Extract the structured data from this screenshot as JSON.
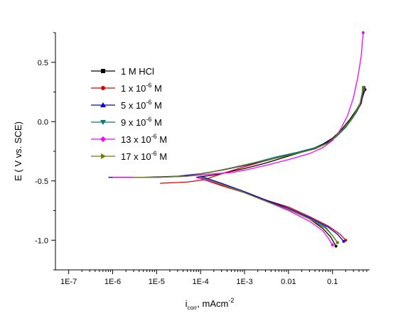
{
  "chart_data": {
    "type": "line",
    "xlabel_main": "i",
    "xlabel_sub": "corr",
    "xlabel_rest": ", mAcm",
    "xlabel_sup": "-2",
    "ylabel": "E ( V vs. SCE)",
    "xscale": "log",
    "xlim": [
      5e-08,
      0.7
    ],
    "ylim": [
      -1.25,
      0.75
    ],
    "xticks": [
      {
        "label": "1E-7",
        "value": 1e-07
      },
      {
        "label": "1E-6",
        "value": 1e-06
      },
      {
        "label": "1E-5",
        "value": 1e-05
      },
      {
        "label": "1E-4",
        "value": 0.0001
      },
      {
        "label": "1E-3",
        "value": 0.001
      },
      {
        "label": "0.01",
        "value": 0.01
      },
      {
        "label": "0.1",
        "value": 0.1
      }
    ],
    "yticks": [
      {
        "label": "-1.0",
        "value": -1.0
      },
      {
        "label": "-0.5",
        "value": -0.5
      },
      {
        "label": "0.0",
        "value": 0.0
      },
      {
        "label": "0.5",
        "value": 0.5
      }
    ],
    "grid": false,
    "legend_position": "upper-left",
    "series": [
      {
        "name": "1 M HCl",
        "label_main": "1 M HCl",
        "label_sup": "",
        "label_tail": "",
        "color": "#000000",
        "marker": "square",
        "ecorr": -0.47,
        "icorr": 8e-05,
        "anodic": [
          [
            8e-05,
            -0.47
          ],
          [
            0.0002,
            -0.45
          ],
          [
            0.0005,
            -0.42
          ],
          [
            0.001,
            -0.395
          ],
          [
            0.003,
            -0.35
          ],
          [
            0.01,
            -0.29
          ],
          [
            0.03,
            -0.24
          ],
          [
            0.06,
            -0.19
          ],
          [
            0.1,
            -0.14
          ],
          [
            0.15,
            -0.08
          ],
          [
            0.25,
            0.02
          ],
          [
            0.35,
            0.1
          ],
          [
            0.45,
            0.17
          ],
          [
            0.55,
            0.27
          ]
        ],
        "cathodic": [
          [
            8e-05,
            -0.47
          ],
          [
            0.0002,
            -0.51
          ],
          [
            0.0005,
            -0.56
          ],
          [
            0.001,
            -0.6
          ],
          [
            0.003,
            -0.66
          ],
          [
            0.01,
            -0.74
          ],
          [
            0.03,
            -0.82
          ],
          [
            0.06,
            -0.9
          ],
          [
            0.09,
            -0.97
          ],
          [
            0.12,
            -1.05
          ]
        ]
      },
      {
        "name": "1 x 10-6 M",
        "label_main": "1 x 10",
        "label_sup": "-6",
        "label_tail": " M",
        "color": "#e00000",
        "marker": "circle",
        "ecorr": -0.52,
        "icorr": 0.00012,
        "anodic": [
          [
            1.2e-05,
            -0.52
          ],
          [
            5e-05,
            -0.51
          ],
          [
            0.00012,
            -0.49
          ],
          [
            0.0003,
            -0.44
          ],
          [
            0.001,
            -0.38
          ],
          [
            0.003,
            -0.33
          ],
          [
            0.01,
            -0.28
          ],
          [
            0.03,
            -0.24
          ],
          [
            0.06,
            -0.2
          ],
          [
            0.1,
            -0.15
          ],
          [
            0.15,
            -0.09
          ],
          [
            0.25,
            0.0
          ],
          [
            0.35,
            0.08
          ],
          [
            0.45,
            0.15
          ],
          [
            0.52,
            0.27
          ]
        ],
        "cathodic": [
          [
            0.00012,
            -0.49
          ],
          [
            0.0003,
            -0.54
          ],
          [
            0.001,
            -0.6
          ],
          [
            0.003,
            -0.66
          ],
          [
            0.01,
            -0.72
          ],
          [
            0.03,
            -0.8
          ],
          [
            0.08,
            -0.88
          ],
          [
            0.15,
            -0.95
          ],
          [
            0.2,
            -1.0
          ]
        ]
      },
      {
        "name": "5 x 10-6 M",
        "label_main": "5 x 10",
        "label_sup": "-6",
        "label_tail": " M",
        "color": "#0000e0",
        "marker": "triangle-up",
        "ecorr": -0.47,
        "icorr": 0.0001,
        "anodic": [
          [
            8e-07,
            -0.47
          ],
          [
            5e-06,
            -0.47
          ],
          [
            3e-05,
            -0.46
          ],
          [
            0.0001,
            -0.44
          ],
          [
            0.0003,
            -0.41
          ],
          [
            0.001,
            -0.37
          ],
          [
            0.003,
            -0.33
          ],
          [
            0.01,
            -0.28
          ],
          [
            0.03,
            -0.24
          ],
          [
            0.06,
            -0.2
          ],
          [
            0.1,
            -0.15
          ],
          [
            0.15,
            -0.09
          ],
          [
            0.25,
            0.0
          ],
          [
            0.35,
            0.08
          ],
          [
            0.45,
            0.16
          ],
          [
            0.52,
            0.29
          ]
        ],
        "cathodic": [
          [
            0.0001,
            -0.46
          ],
          [
            0.0003,
            -0.52
          ],
          [
            0.001,
            -0.59
          ],
          [
            0.003,
            -0.66
          ],
          [
            0.01,
            -0.73
          ],
          [
            0.03,
            -0.81
          ],
          [
            0.08,
            -0.89
          ],
          [
            0.13,
            -0.95
          ],
          [
            0.18,
            -1.01
          ]
        ]
      },
      {
        "name": "9 x 10-6 M",
        "label_main": "9 x 10",
        "label_sup": "-6",
        "label_tail": " M",
        "color": "#007a7a",
        "marker": "triangle-down",
        "ecorr": -0.47,
        "icorr": 0.0001,
        "anodic": [
          [
            2e-06,
            -0.47
          ],
          [
            1e-05,
            -0.47
          ],
          [
            5e-05,
            -0.46
          ],
          [
            0.00015,
            -0.43
          ],
          [
            0.0005,
            -0.39
          ],
          [
            0.0015,
            -0.35
          ],
          [
            0.005,
            -0.3
          ],
          [
            0.015,
            -0.26
          ],
          [
            0.04,
            -0.22
          ],
          [
            0.08,
            -0.18
          ],
          [
            0.12,
            -0.13
          ],
          [
            0.2,
            -0.05
          ],
          [
            0.3,
            0.04
          ],
          [
            0.42,
            0.14
          ],
          [
            0.5,
            0.27
          ]
        ],
        "cathodic": [
          [
            0.0001,
            -0.47
          ],
          [
            0.0003,
            -0.53
          ],
          [
            0.001,
            -0.6
          ],
          [
            0.003,
            -0.67
          ],
          [
            0.01,
            -0.74
          ],
          [
            0.03,
            -0.82
          ],
          [
            0.07,
            -0.89
          ],
          [
            0.1,
            -0.96
          ],
          [
            0.13,
            -1.02
          ]
        ]
      },
      {
        "name": "13 x 10-6 M",
        "label_main": "13 x 10",
        "label_sup": "-6",
        "label_tail": " M",
        "color": "#ff00ff",
        "marker": "diamond",
        "ecorr": -0.47,
        "icorr": 8e-05,
        "anodic": [
          [
            1e-06,
            -0.47
          ],
          [
            1e-05,
            -0.47
          ],
          [
            5e-05,
            -0.46
          ],
          [
            0.0002,
            -0.44
          ],
          [
            0.0005,
            -0.43
          ],
          [
            0.001,
            -0.41
          ],
          [
            0.003,
            -0.37
          ],
          [
            0.01,
            -0.32
          ],
          [
            0.03,
            -0.27
          ],
          [
            0.06,
            -0.22
          ],
          [
            0.1,
            -0.16
          ],
          [
            0.15,
            -0.07
          ],
          [
            0.22,
            0.05
          ],
          [
            0.3,
            0.2
          ],
          [
            0.38,
            0.38
          ],
          [
            0.45,
            0.55
          ],
          [
            0.5,
            0.75
          ]
        ],
        "cathodic": [
          [
            8e-05,
            -0.47
          ],
          [
            0.0003,
            -0.53
          ],
          [
            0.001,
            -0.6
          ],
          [
            0.003,
            -0.67
          ],
          [
            0.01,
            -0.75
          ],
          [
            0.03,
            -0.84
          ],
          [
            0.06,
            -0.92
          ],
          [
            0.08,
            -0.98
          ],
          [
            0.1,
            -1.04
          ]
        ]
      },
      {
        "name": "17 x 10-6 M",
        "label_main": "17 x 10",
        "label_sup": "-6",
        "label_tail": " M",
        "color": "#6b7f00",
        "marker": "triangle-right",
        "ecorr": -0.47,
        "icorr": 0.0001,
        "anodic": [
          [
            3e-06,
            -0.47
          ],
          [
            1e-05,
            -0.47
          ],
          [
            5e-05,
            -0.46
          ],
          [
            0.00015,
            -0.43
          ],
          [
            0.0005,
            -0.39
          ],
          [
            0.0015,
            -0.35
          ],
          [
            0.005,
            -0.31
          ],
          [
            0.015,
            -0.27
          ],
          [
            0.04,
            -0.23
          ],
          [
            0.08,
            -0.18
          ],
          [
            0.12,
            -0.12
          ],
          [
            0.2,
            -0.04
          ],
          [
            0.3,
            0.05
          ],
          [
            0.42,
            0.15
          ],
          [
            0.5,
            0.29
          ]
        ],
        "cathodic": [
          [
            0.0001,
            -0.47
          ],
          [
            0.0003,
            -0.53
          ],
          [
            0.001,
            -0.6
          ],
          [
            0.003,
            -0.67
          ],
          [
            0.01,
            -0.74
          ],
          [
            0.03,
            -0.82
          ],
          [
            0.07,
            -0.9
          ],
          [
            0.1,
            -0.96
          ],
          [
            0.13,
            -1.02
          ]
        ]
      }
    ]
  }
}
